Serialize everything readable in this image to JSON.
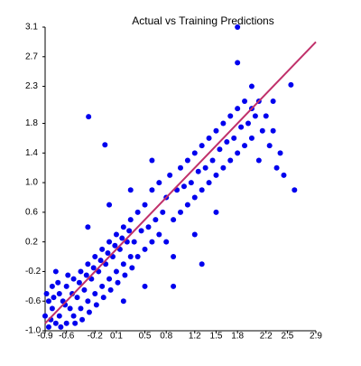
{
  "chart_data": {
    "type": "scatter",
    "title": "Actual vs Training Predictions",
    "color": "#0000ee",
    "x": [
      -0.85,
      -0.8,
      -0.75,
      -0.7,
      -0.7,
      -0.65,
      -0.6,
      -0.6,
      -0.55,
      -0.5,
      -0.5,
      -0.45,
      -0.4,
      -0.4,
      -0.35,
      -0.3,
      -0.3,
      -0.25,
      -0.2,
      -0.2,
      -0.15,
      -0.1,
      -0.1,
      -0.05,
      0.0,
      0.0,
      0.05,
      0.1,
      0.1,
      0.15,
      0.2,
      0.2,
      0.25,
      0.3,
      0.3,
      -0.85,
      -0.8,
      -0.75,
      -0.9,
      -0.88,
      -0.82,
      -0.78,
      -0.72,
      -0.68,
      -0.62,
      -0.58,
      -0.52,
      -0.48,
      -0.42,
      -0.38,
      -0.32,
      -0.28,
      -0.22,
      -0.18,
      -0.12,
      -0.08,
      -0.02,
      0.02,
      0.08,
      0.12,
      0.18,
      0.22,
      0.28,
      0.32,
      0.35,
      0.4,
      0.4,
      0.45,
      0.5,
      0.5,
      0.55,
      0.6,
      0.6,
      0.65,
      0.7,
      0.7,
      0.75,
      0.8,
      0.8,
      0.85,
      0.9,
      0.95,
      1.0,
      1.0,
      1.05,
      1.1,
      1.1,
      1.15,
      1.2,
      1.2,
      1.25,
      1.3,
      1.3,
      1.35,
      1.4,
      1.4,
      1.45,
      1.5,
      1.5,
      1.55,
      1.6,
      1.6,
      1.65,
      1.7,
      1.7,
      1.75,
      1.8,
      1.8,
      1.85,
      1.9,
      1.9,
      1.95,
      2.0,
      2.0,
      2.05,
      2.1,
      2.1,
      2.15,
      2.2,
      2.25,
      2.3,
      2.35,
      2.4,
      2.45,
      2.3,
      2.0,
      1.8,
      1.8,
      2.55,
      -0.29,
      -0.06,
      0.9,
      1.2,
      1.5,
      0.3,
      0.6,
      0.0,
      0.2,
      0.5,
      -0.3,
      1.3,
      0.9,
      2.6
    ],
    "values": [
      -0.95,
      -0.7,
      -0.9,
      -0.5,
      -0.8,
      -0.6,
      -0.9,
      -0.4,
      -0.7,
      -0.3,
      -0.8,
      -0.55,
      -0.2,
      -0.7,
      -0.45,
      -0.1,
      -0.6,
      -0.3,
      0.0,
      -0.5,
      -0.2,
      0.1,
      -0.4,
      -0.1,
      0.2,
      -0.3,
      0.0,
      0.3,
      -0.2,
      0.1,
      0.4,
      -0.1,
      0.2,
      0.5,
      0.0,
      -0.6,
      -0.4,
      -0.2,
      -0.8,
      -0.5,
      -0.85,
      -0.55,
      -0.35,
      -0.95,
      -0.65,
      -0.25,
      -0.5,
      -0.9,
      -0.35,
      -0.85,
      -0.25,
      -0.75,
      -0.15,
      -0.65,
      -0.05,
      -0.55,
      0.05,
      -0.45,
      0.15,
      -0.35,
      0.25,
      -0.25,
      0.35,
      -0.15,
      0.2,
      0.6,
      0.0,
      0.35,
      0.7,
      0.1,
      0.4,
      0.9,
      0.2,
      0.5,
      1.0,
      0.3,
      0.6,
      0.8,
      0.2,
      1.1,
      0.5,
      0.9,
      1.2,
      0.6,
      0.95,
      1.3,
      0.7,
      1.0,
      1.4,
      0.8,
      1.15,
      1.5,
      0.9,
      1.2,
      1.6,
      1.0,
      1.3,
      1.7,
      1.1,
      1.45,
      1.8,
      1.2,
      1.55,
      1.9,
      1.3,
      1.6,
      2.0,
      1.4,
      1.75,
      2.1,
      1.5,
      1.8,
      2.0,
      1.6,
      1.9,
      1.3,
      2.1,
      1.7,
      1.9,
      1.5,
      1.7,
      1.2,
      1.4,
      1.1,
      2.1,
      2.3,
      3.1,
      2.62,
      2.32,
      1.89,
      1.51,
      0.0,
      0.3,
      0.6,
      0.9,
      1.3,
      0.7,
      -0.6,
      -0.4,
      0.4,
      -0.1,
      -0.4,
      0.9
    ],
    "line": {
      "color": "#c0306a",
      "x": [
        -0.9,
        2.9
      ],
      "y": [
        -0.9,
        2.9
      ]
    },
    "xlim": [
      -0.9,
      2.9
    ],
    "ylim": [
      -1.0,
      3.1
    ],
    "xticks": [
      -0.9,
      -0.6,
      -0.2,
      0.1,
      0.5,
      0.8,
      1.2,
      1.5,
      1.8,
      2.2,
      2.5,
      2.9
    ],
    "yticks": [
      {
        "value": -1.0,
        "label": "-1.0"
      },
      -0.6,
      -0.2,
      0.2,
      0.6,
      {
        "value": 1.0,
        "label": "1.0"
      },
      1.4,
      1.8,
      2.3,
      2.7,
      3.1
    ]
  }
}
